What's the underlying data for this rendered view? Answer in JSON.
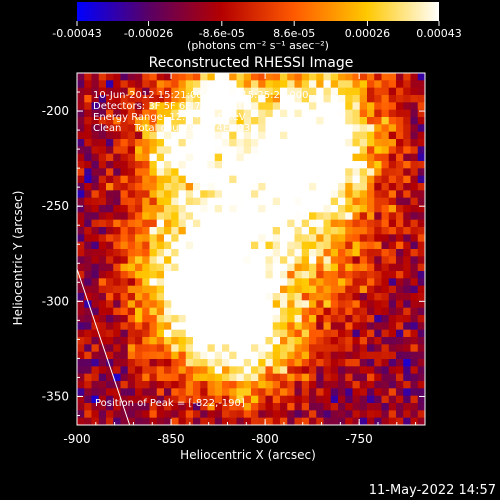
{
  "chart_data": {
    "type": "heatmap",
    "title": "Reconstructed RHESSI Image",
    "xlabel": "Heliocentric X (arcsec)",
    "ylabel": "Heliocentric Y (arcsec)",
    "xlim": [
      -900,
      -715
    ],
    "ylim": [
      -365,
      -180
    ],
    "x_ticks": [
      -900,
      -850,
      -800,
      -750
    ],
    "y_ticks": [
      -200,
      -250,
      -300,
      -350
    ],
    "colorbar": {
      "range": [
        -0.00043,
        0.00043
      ],
      "tick_values": [
        -0.00043,
        -0.00026,
        -8.6e-05,
        8.6e-05,
        0.00026,
        0.00043
      ],
      "tick_labels": [
        "-0.00043",
        "-0.00026",
        "-8.6e-05",
        "8.6e-05",
        "0.00026",
        "0.00043"
      ],
      "unit_label": "(photons cm⁻² s⁻¹ asec⁻²)",
      "colors": [
        "#0000ff",
        "#5a0064",
        "#b40000",
        "#ff5a00",
        "#ffc800",
        "#ffffff"
      ]
    },
    "annotations": [
      "10-Jun-2012 15:21:00.000 to 15:25:20.000",
      "Detectors: 3F 5F 6F 7F 8F, Att 0",
      "Energy Range: 12.0 - 25.0 keV",
      "Clean    Total counts: 2.74E+03"
    ],
    "peak_label": "Position of Peak = [-822,-190]",
    "limb_line": {
      "points": [
        [
          -900,
          -283
        ],
        [
          -872,
          -365
        ]
      ],
      "color": "#ffffff"
    },
    "sources": [
      {
        "x": -800,
        "y": -250,
        "peak": 0.00042,
        "sx": 38,
        "sy": 48
      },
      {
        "x": -768,
        "y": -212,
        "peak": 0.00036,
        "sx": 22,
        "sy": 26
      },
      {
        "x": -838,
        "y": -290,
        "peak": 0.0003,
        "sx": 24,
        "sy": 30
      },
      {
        "x": -812,
        "y": -322,
        "peak": 0.00028,
        "sx": 20,
        "sy": 22
      },
      {
        "x": -845,
        "y": -215,
        "peak": 0.00024,
        "sx": 18,
        "sy": 18
      },
      {
        "x": -825,
        "y": -190,
        "peak": 0.0003,
        "sx": 10,
        "sy": 10
      }
    ],
    "background_level": -0.00018
  },
  "footer": {
    "timestamp": "11-May-2022 14:57"
  }
}
